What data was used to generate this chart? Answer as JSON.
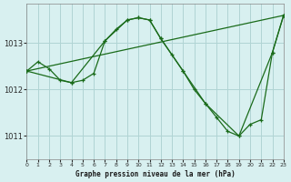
{
  "title": "Graphe pression niveau de la mer (hPa)",
  "bg_color": "#d8f0f0",
  "grid_color": "#b0d4d4",
  "line_color": "#1a6b1a",
  "xlim": [
    0,
    23
  ],
  "ylim": [
    1010.5,
    1013.85
  ],
  "yticks": [
    1011,
    1012,
    1013
  ],
  "xticks": [
    0,
    1,
    2,
    3,
    4,
    5,
    6,
    7,
    8,
    9,
    10,
    11,
    12,
    13,
    14,
    15,
    16,
    17,
    18,
    19,
    20,
    21,
    22,
    23
  ],
  "series1_x": [
    0,
    1,
    2,
    3,
    4,
    5,
    6,
    7,
    8,
    9,
    10,
    11,
    12,
    13,
    14,
    15,
    16,
    17,
    18,
    19,
    20,
    21,
    22,
    23
  ],
  "series1_y": [
    1012.4,
    1012.6,
    1012.45,
    1012.2,
    1012.15,
    1012.2,
    1012.35,
    1013.05,
    1013.3,
    1013.5,
    1013.55,
    1013.5,
    1013.1,
    1012.75,
    1012.4,
    1012.0,
    1011.7,
    1011.4,
    1011.1,
    1011.0,
    1011.25,
    1011.35,
    1012.8,
    1013.6
  ],
  "series2_x": [
    0,
    23
  ],
  "series2_y": [
    1012.4,
    1013.6
  ],
  "series3_x": [
    0,
    4,
    7,
    9,
    10,
    11,
    12,
    14,
    16,
    19,
    22,
    23
  ],
  "series3_y": [
    1012.4,
    1012.15,
    1013.05,
    1013.5,
    1013.55,
    1013.5,
    1013.1,
    1012.4,
    1011.7,
    1011.0,
    1012.8,
    1013.6
  ]
}
